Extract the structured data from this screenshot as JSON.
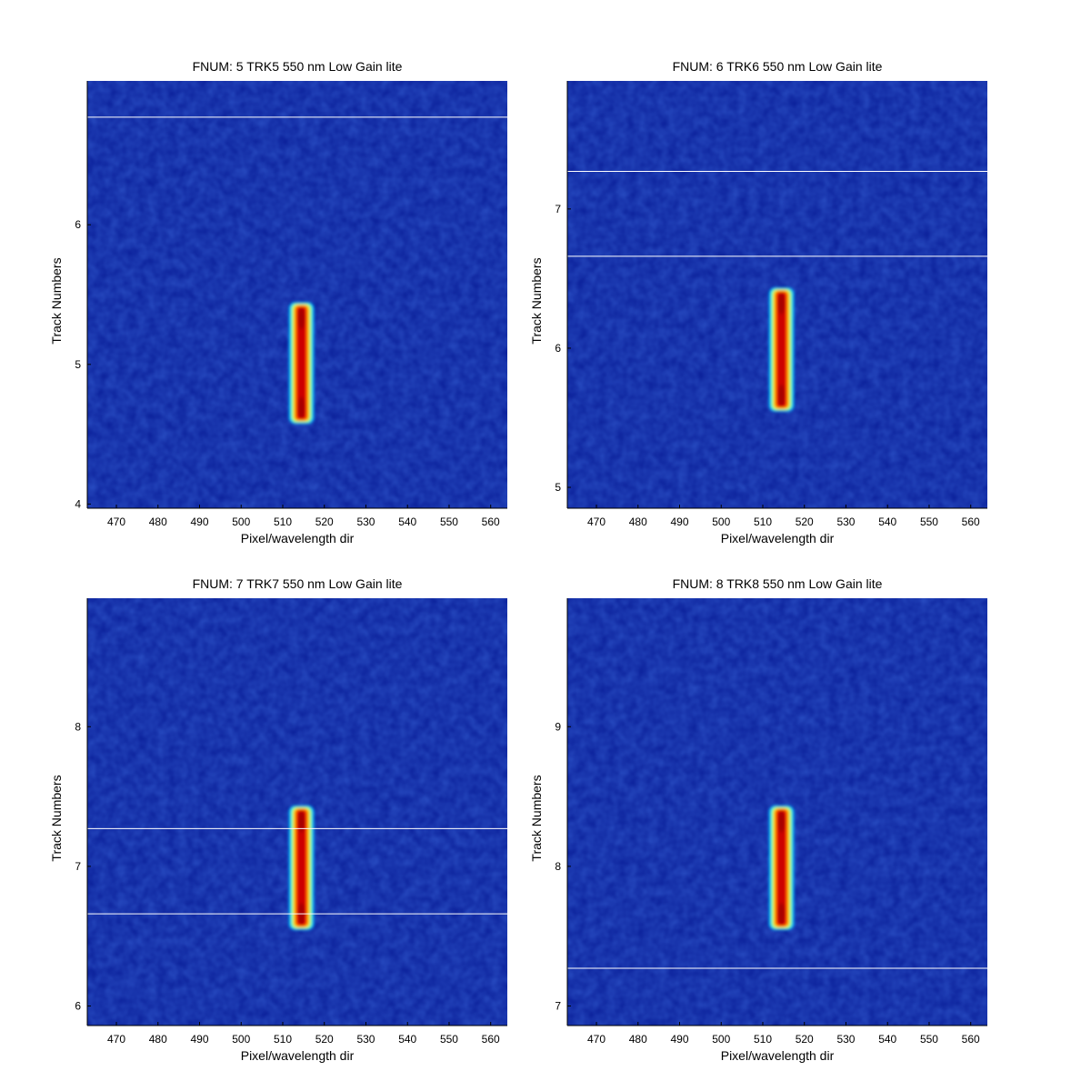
{
  "chart_data": [
    {
      "type": "heatmap",
      "title": "FNUM: 5 TRK5 550 nm Low Gain lite",
      "xlabel": "Pixel/wavelength dir",
      "ylabel": "Track Numbers",
      "xlim": [
        463,
        564
      ],
      "ylim": [
        3.97,
        7.03
      ],
      "xticks": [
        470,
        480,
        490,
        500,
        510,
        520,
        530,
        540,
        550,
        560
      ],
      "yticks": [
        4,
        5,
        6
      ],
      "hlines": [
        6.77
      ],
      "spot": {
        "x_center": 514.5,
        "y_min": 4.6,
        "y_max": 5.42
      },
      "colormap": "jet",
      "background": "#0a1f99"
    },
    {
      "type": "heatmap",
      "title": "FNUM: 6 TRK6 550 nm Low Gain lite",
      "xlabel": "Pixel/wavelength dir",
      "ylabel": "Track Numbers",
      "xlim": [
        463,
        564
      ],
      "ylim": [
        4.85,
        7.92
      ],
      "xticks": [
        470,
        480,
        490,
        500,
        510,
        520,
        530,
        540,
        550,
        560
      ],
      "yticks": [
        5,
        6,
        7
      ],
      "hlines": [
        7.27,
        6.66
      ],
      "spot": {
        "x_center": 514.5,
        "y_min": 5.57,
        "y_max": 6.41
      },
      "colormap": "jet",
      "background": "#0a1f99"
    },
    {
      "type": "heatmap",
      "title": "FNUM: 7 TRK7 550 nm Low Gain lite",
      "xlabel": "Pixel/wavelength dir",
      "ylabel": "Track Numbers",
      "xlim": [
        463,
        564
      ],
      "ylim": [
        5.86,
        8.92
      ],
      "xticks": [
        470,
        480,
        490,
        500,
        510,
        520,
        530,
        540,
        550,
        560
      ],
      "yticks": [
        6,
        7,
        8
      ],
      "hlines": [
        7.27,
        6.66
      ],
      "spot": {
        "x_center": 514.5,
        "y_min": 6.57,
        "y_max": 7.41
      },
      "colormap": "jet",
      "background": "#0a1f99"
    },
    {
      "type": "heatmap",
      "title": "FNUM: 8 TRK8 550 nm Low Gain lite",
      "xlabel": "Pixel/wavelength dir",
      "ylabel": "Track Numbers",
      "xlim": [
        463,
        564
      ],
      "ylim": [
        6.86,
        9.92
      ],
      "xticks": [
        470,
        480,
        490,
        500,
        510,
        520,
        530,
        540,
        550,
        560
      ],
      "yticks": [
        7,
        8,
        9
      ],
      "hlines": [
        7.27
      ],
      "spot": {
        "x_center": 514.5,
        "y_min": 7.57,
        "y_max": 8.41
      },
      "colormap": "jet",
      "background": "#0a1f99"
    }
  ]
}
